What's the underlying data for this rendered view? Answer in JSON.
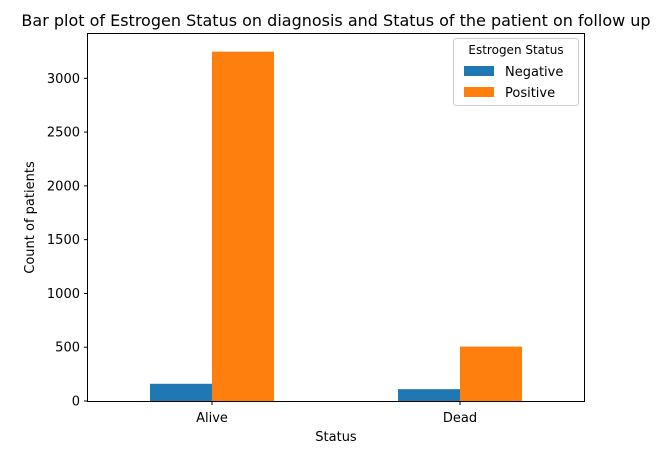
{
  "chart_data": {
    "type": "bar",
    "title": "Bar plot of Estrogen Status on diagnosis and Status of the patient on follow up",
    "xlabel": "Status",
    "ylabel": "Count of patients",
    "categories": [
      "Alive",
      "Dead"
    ],
    "series": [
      {
        "name": "Negative",
        "values": [
          160,
          110
        ],
        "color": "#1f77b4"
      },
      {
        "name": "Positive",
        "values": [
          3248,
          506
        ],
        "color": "#ff7f0e"
      }
    ],
    "ylim": [
      0,
      3412
    ],
    "yticks": [
      0,
      500,
      1000,
      1500,
      2000,
      2500,
      3000
    ],
    "grid": false,
    "legend": {
      "title": "Estrogen Status",
      "position": "top-right"
    }
  }
}
